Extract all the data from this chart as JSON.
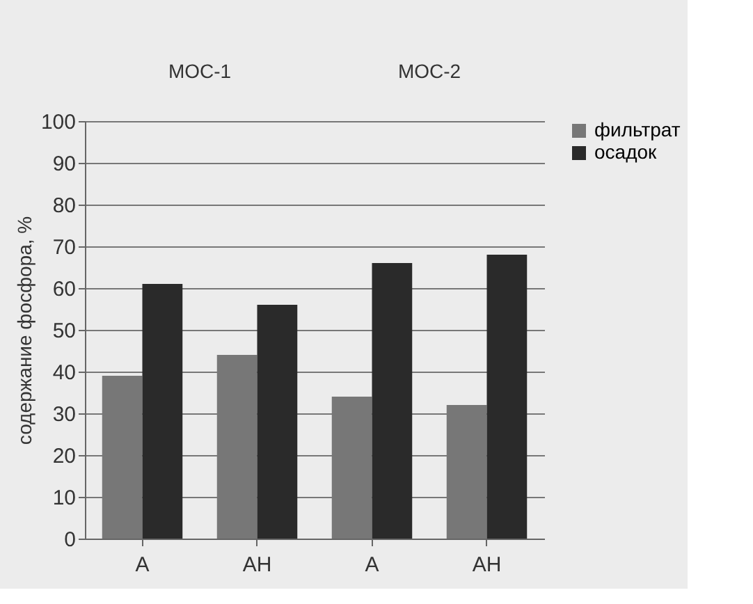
{
  "chart_data": {
    "type": "bar",
    "ylabel": "содержание фосфора, %",
    "categories": [
      "А",
      "АН",
      "А",
      "АН"
    ],
    "series": [
      {
        "name": "фильтрат",
        "color": "#777777",
        "values": [
          39,
          44,
          34,
          32
        ]
      },
      {
        "name": "осадок",
        "color": "#2a2a2a",
        "values": [
          61,
          56,
          66,
          68
        ]
      }
    ],
    "ylim": [
      0,
      100
    ],
    "yticks": [
      0,
      10,
      20,
      30,
      40,
      50,
      60,
      70,
      80,
      90,
      100
    ],
    "grid": "y",
    "legend": "right",
    "annotations": [
      "МОС-1",
      "МОС-2"
    ]
  }
}
